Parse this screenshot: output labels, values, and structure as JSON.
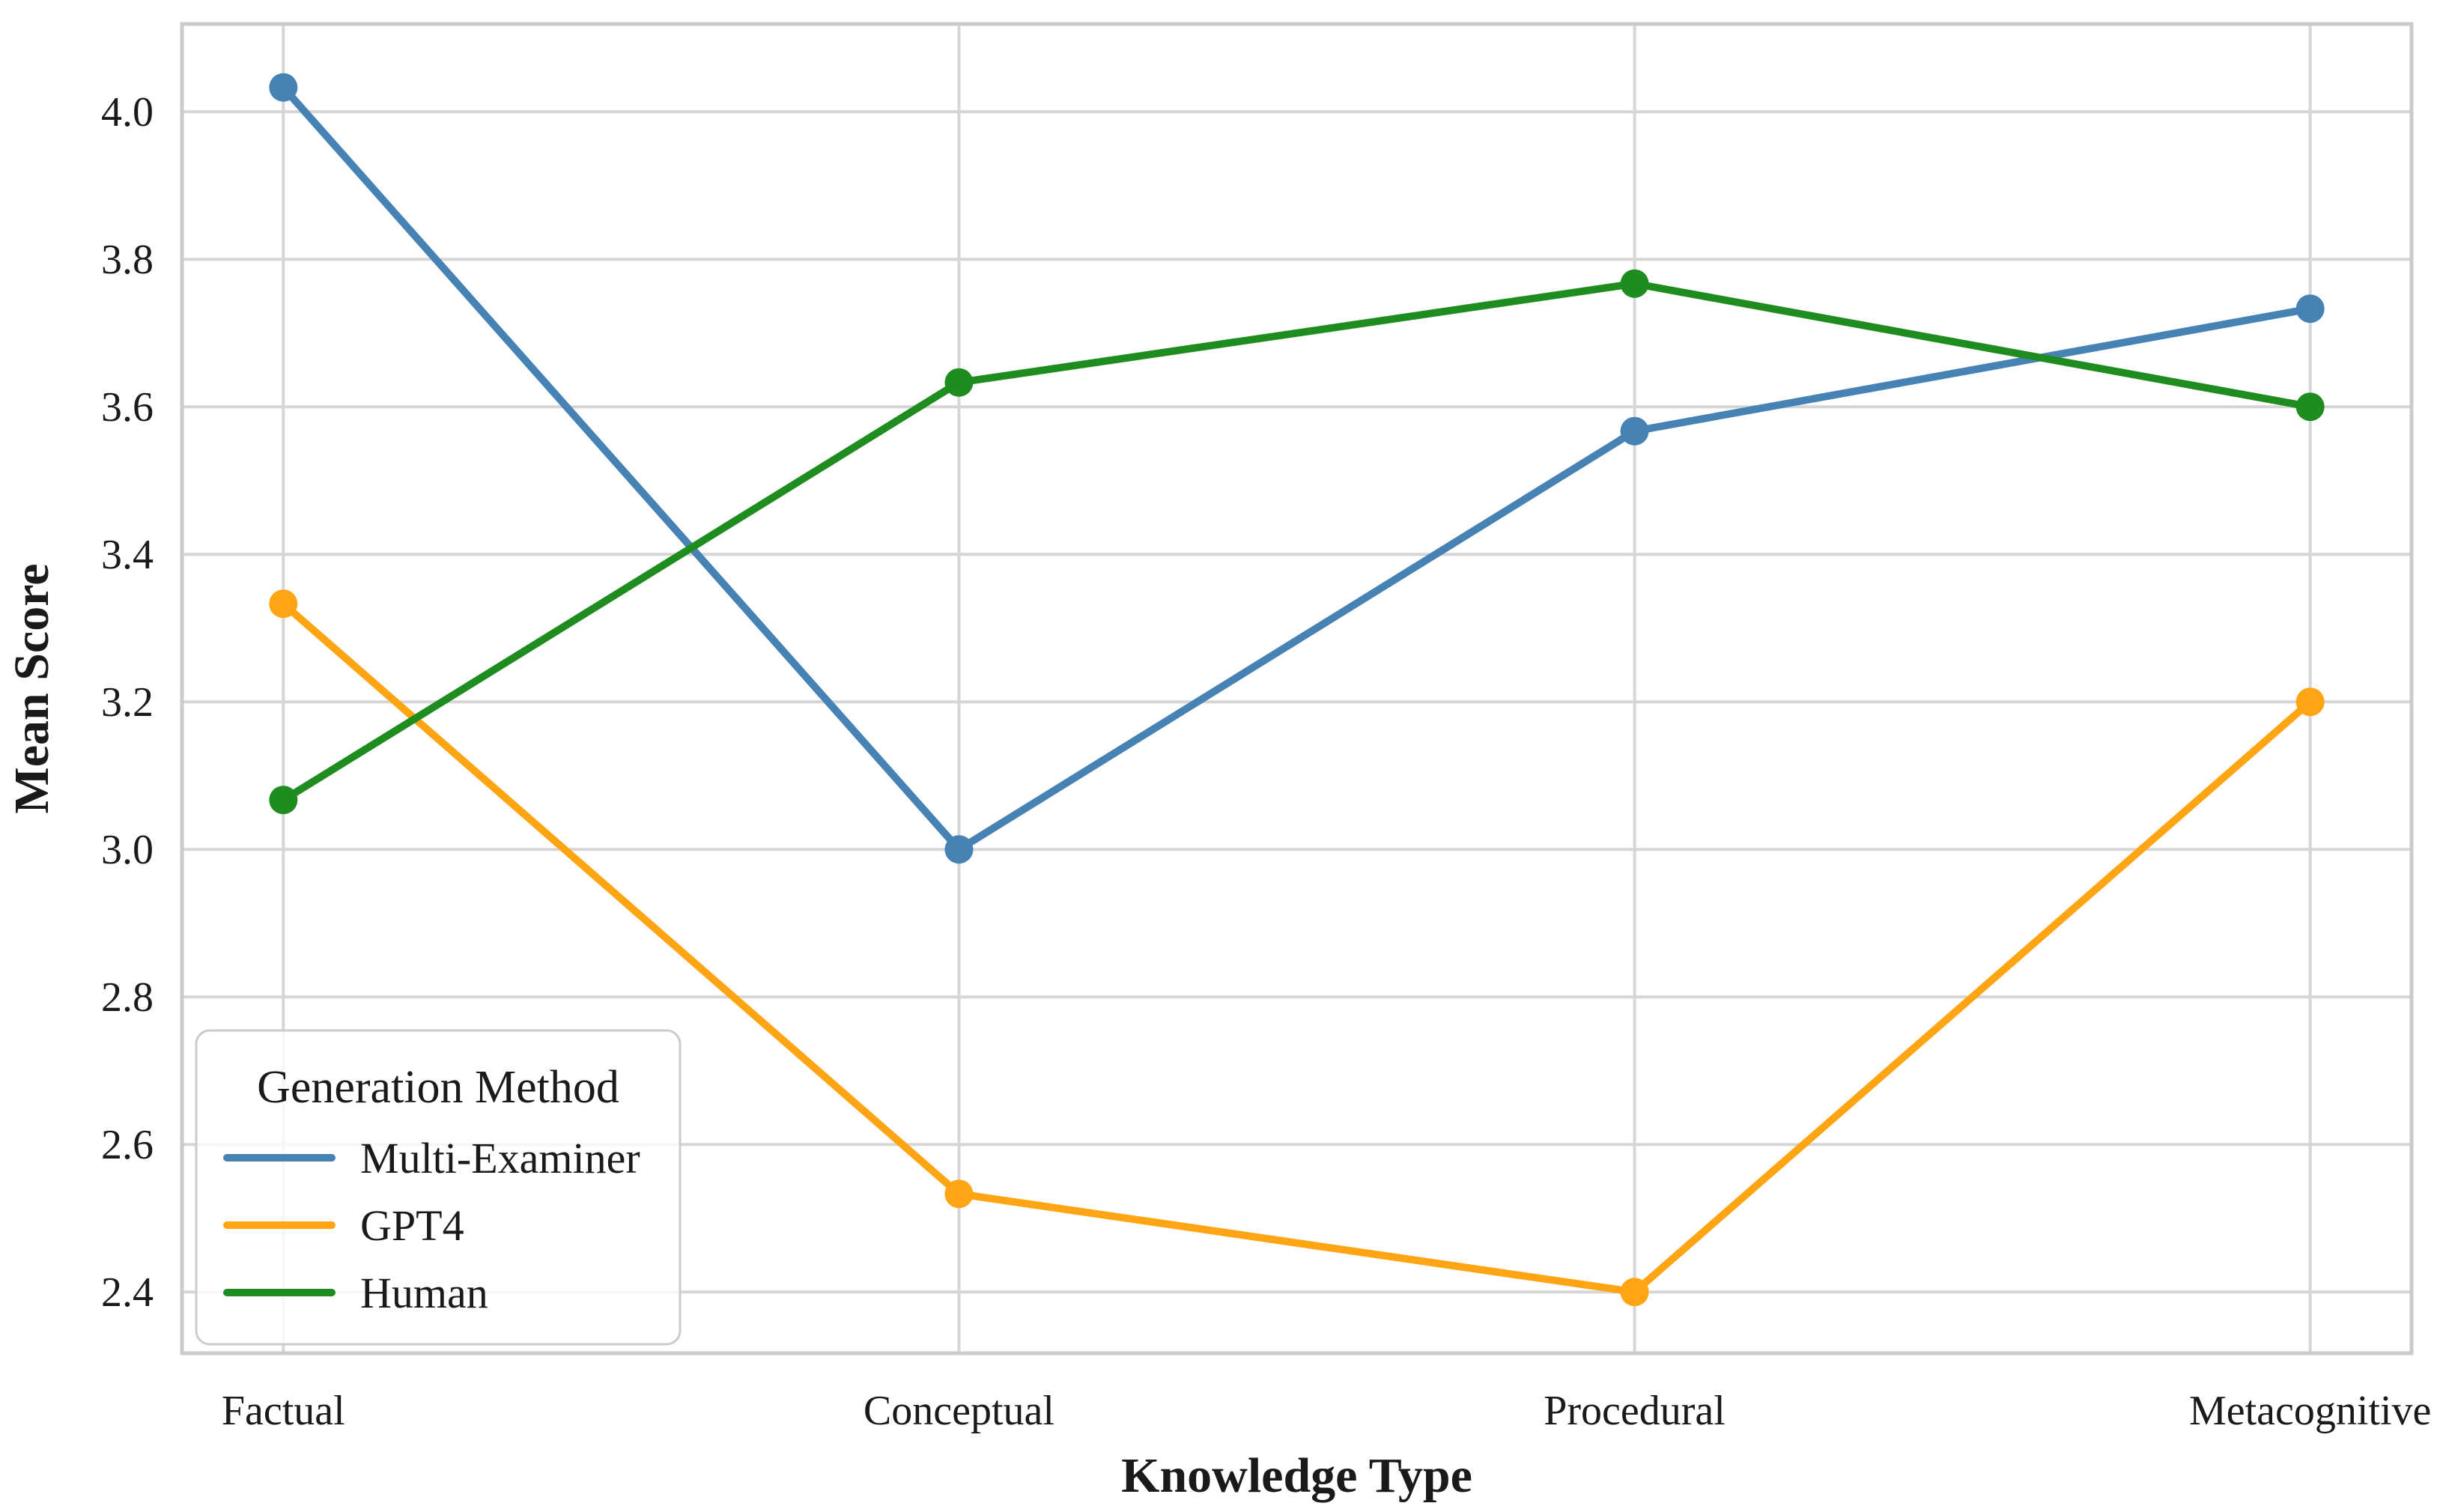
{
  "figure": {
    "xlabel": "Knowledge Type",
    "ylabel": "Mean Score"
  },
  "legend": {
    "title": "Generation Method",
    "entries": [
      "Multi-Examiner",
      "GPT4",
      "Human"
    ]
  },
  "colors": {
    "multi_examiner": "#4682B4",
    "gpt4": "#FFA413",
    "human": "#1E8C1E",
    "grid": "#D6D6D6",
    "frame": "#CBCBCB",
    "text": "#1A1A1A"
  },
  "chart_data": {
    "type": "line",
    "title": "",
    "xlabel": "Knowledge Type",
    "ylabel": "Mean Score",
    "categories": [
      "Factual",
      "Conceptual",
      "Procedural",
      "Metacognitive"
    ],
    "series": [
      {
        "name": "Multi-Examiner",
        "color": "#4682B4",
        "values": [
          4.033,
          3.0,
          3.567,
          3.733
        ]
      },
      {
        "name": "GPT4",
        "color": "#FFA413",
        "values": [
          3.333,
          2.533,
          2.4,
          3.2
        ]
      },
      {
        "name": "Human",
        "color": "#1E8C1E",
        "values": [
          3.067,
          3.633,
          3.767,
          3.6
        ]
      }
    ],
    "yticks": [
      2.4,
      2.6,
      2.8,
      3.0,
      3.2,
      3.4,
      3.6,
      3.8,
      4.0
    ],
    "ytick_labels": [
      "2.4",
      "2.6",
      "2.8",
      "3.0",
      "3.2",
      "3.4",
      "3.6",
      "3.8",
      "4.0"
    ],
    "ylim": [
      2.317,
      4.119
    ],
    "x_margin": 0.15,
    "grid": true,
    "legend_position": "lower left",
    "legend_title": "Generation Method"
  }
}
